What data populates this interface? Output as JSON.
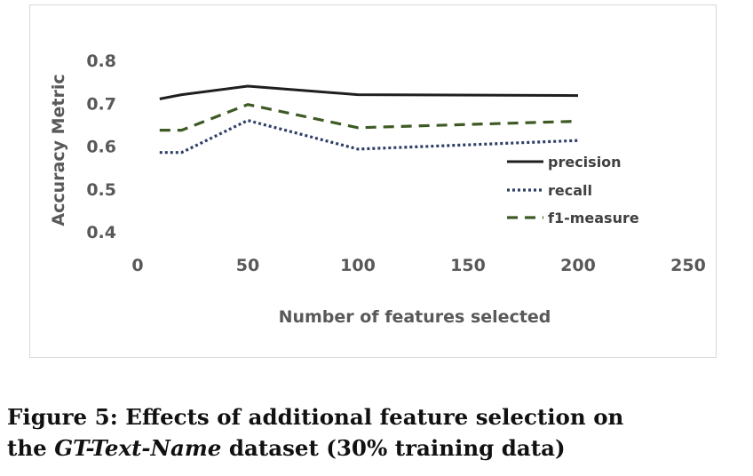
{
  "chart_data": {
    "type": "line",
    "x": [
      10,
      20,
      50,
      100,
      200
    ],
    "series": [
      {
        "name": "precision",
        "values": [
          0.71,
          0.72,
          0.74,
          0.72,
          0.718
        ],
        "color": "#1f1f1f",
        "dash": "solid"
      },
      {
        "name": "recall",
        "values": [
          0.585,
          0.585,
          0.66,
          0.593,
          0.613
        ],
        "color": "#2f3e66",
        "dash": "dotted"
      },
      {
        "name": "f1-measure",
        "values": [
          0.637,
          0.637,
          0.697,
          0.643,
          0.658
        ],
        "color": "#3d5a24",
        "dash": "dashed"
      }
    ],
    "xlabel": "Number of features selected",
    "ylabel": "Accuracy Metric",
    "xlim": [
      0,
      250
    ],
    "ylim": [
      0.4,
      0.8
    ],
    "x_ticks": [
      "0",
      "50",
      "100",
      "150",
      "200",
      "250"
    ],
    "y_ticks": [
      "0.4",
      "0.5",
      "0.6",
      "0.7",
      "0.8"
    ],
    "grid": false,
    "legend_position": "right"
  },
  "caption": {
    "prefix": "Figure 5:  Effects of additional feature selection on",
    "line2_before": "the ",
    "line2_em": "GT-Text-Name",
    "line2_after": " dataset (30% training data)"
  }
}
